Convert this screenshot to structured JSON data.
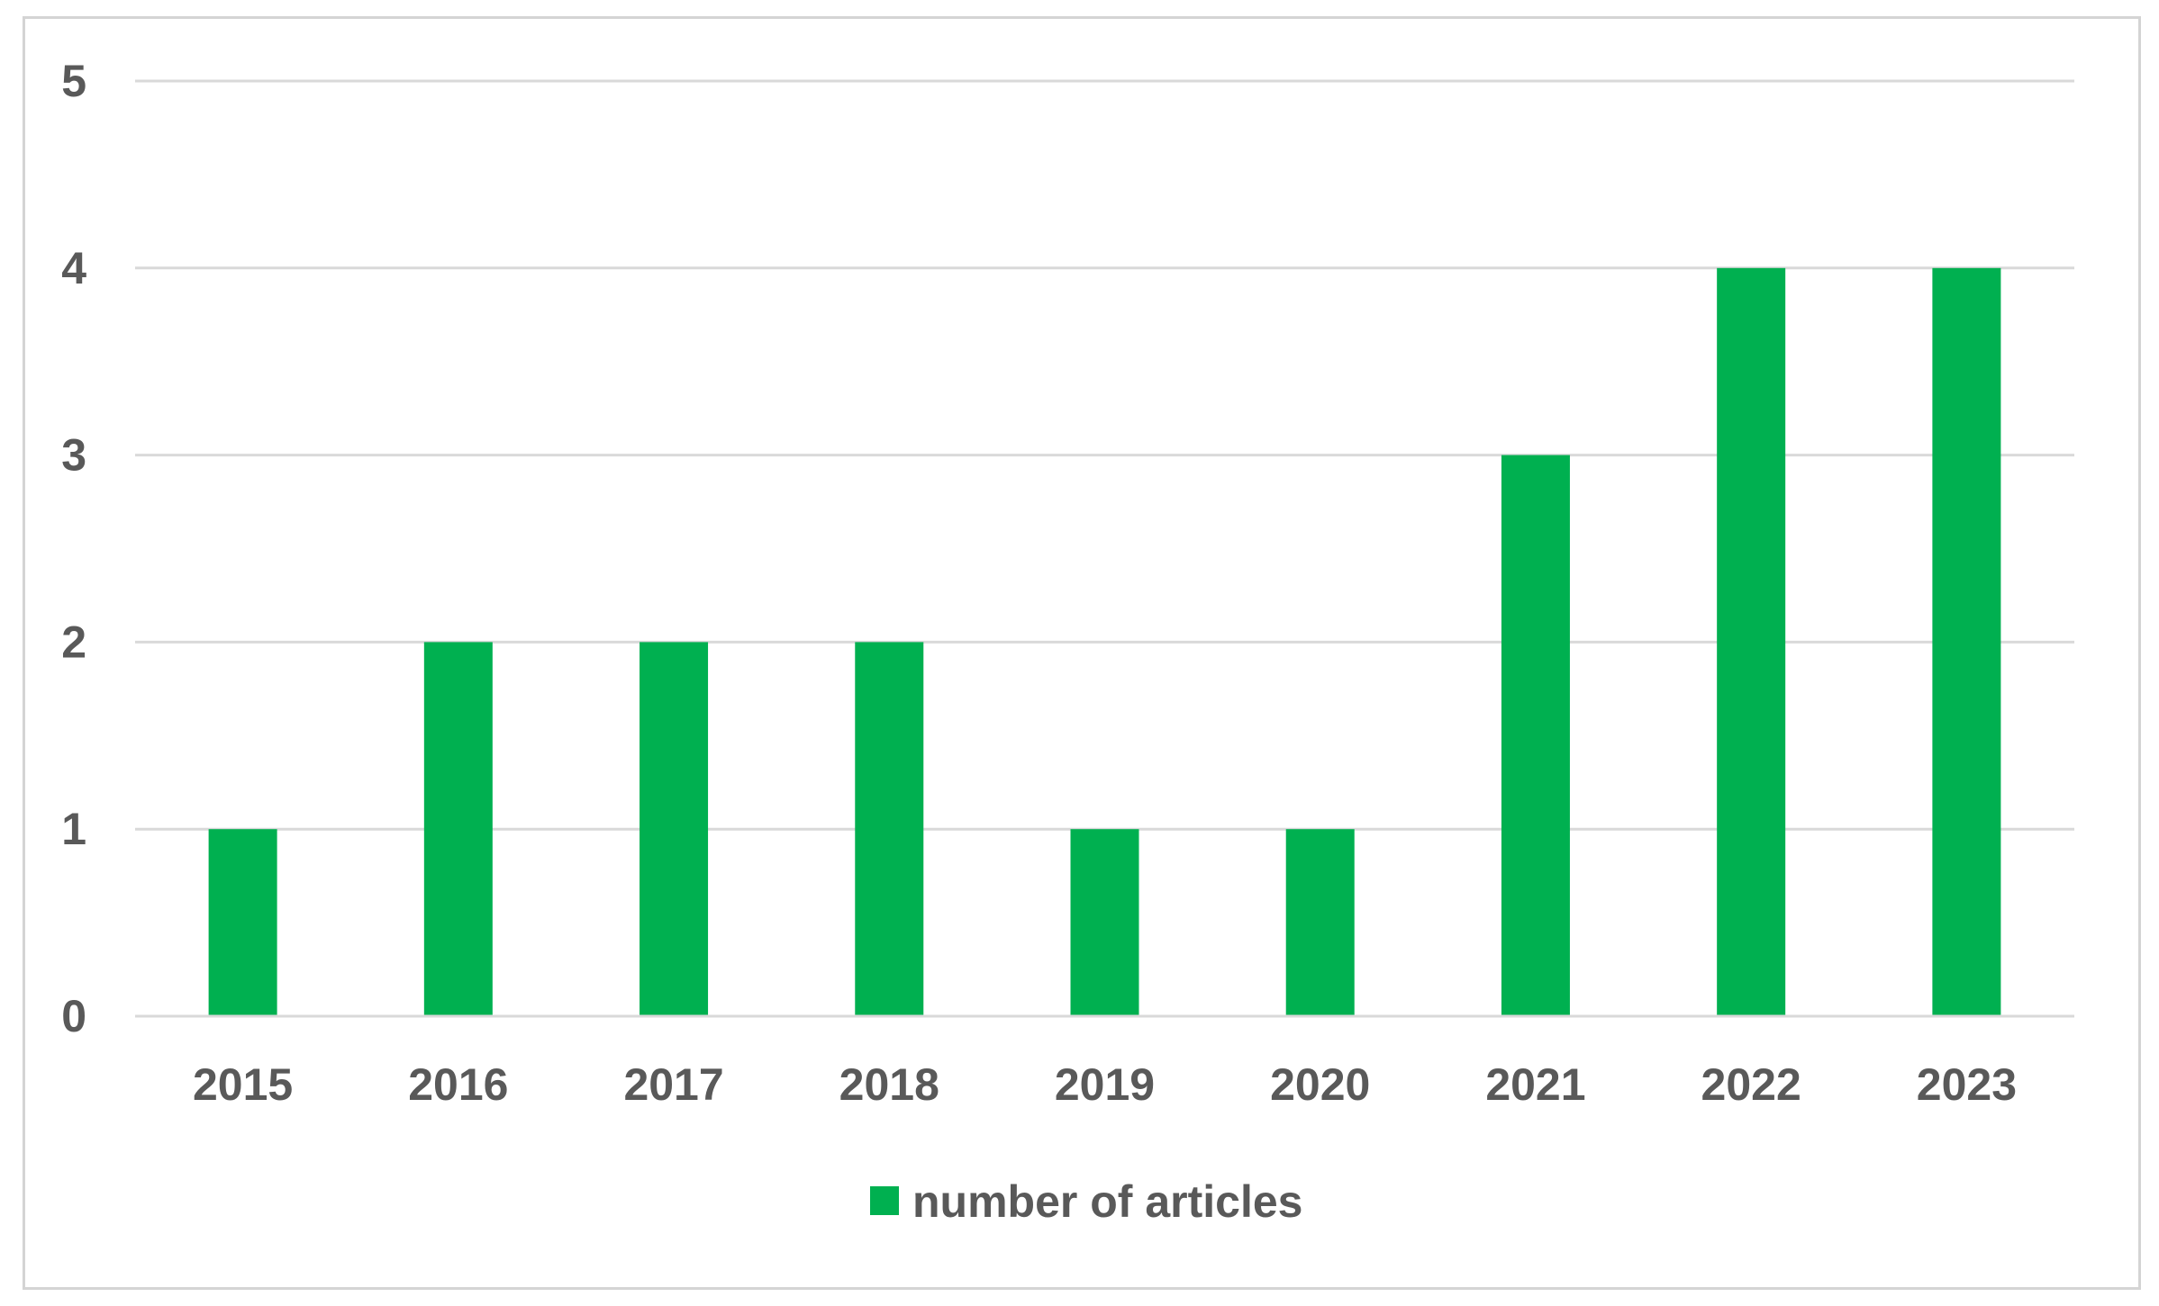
{
  "chart_data": {
    "type": "bar",
    "categories": [
      "2015",
      "2016",
      "2017",
      "2018",
      "2019",
      "2020",
      "2021",
      "2022",
      "2023"
    ],
    "series": [
      {
        "name": "number of articles",
        "values": [
          1,
          2,
          2,
          2,
          1,
          1,
          3,
          4,
          4
        ],
        "color": "#00b050"
      }
    ],
    "title": "",
    "xlabel": "",
    "ylabel": "",
    "ylim": [
      0,
      5
    ],
    "yticks": [
      "0",
      "1",
      "2",
      "3",
      "4",
      "5"
    ],
    "grid": true,
    "legend_position": "bottom",
    "colors": {
      "gridline": "#d9d9d9",
      "text": "#595959",
      "frame": "#d4d4d4"
    }
  }
}
